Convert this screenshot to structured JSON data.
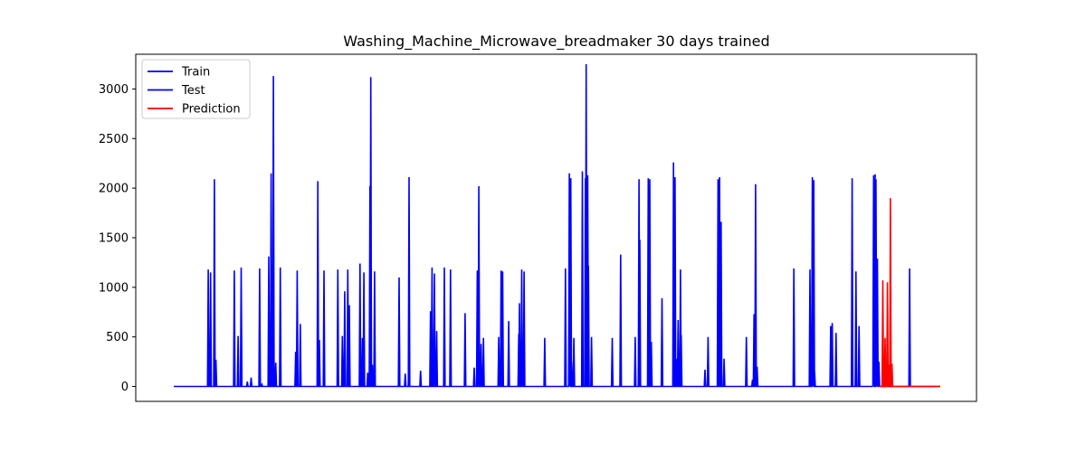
{
  "chart_data": {
    "type": "line",
    "title": "Washing_Machine_Microwave_breadmaker 30 days trained",
    "xlabel": "",
    "ylabel": "",
    "x_range": [
      0,
      1000
    ],
    "ylim": [
      -150,
      3350
    ],
    "yticks": [
      0,
      500,
      1000,
      1500,
      2000,
      2500,
      3000
    ],
    "xticks": [],
    "grid": false,
    "legend_position": "top-left",
    "legend": [
      {
        "label": "Train",
        "color": "#0000ff"
      },
      {
        "label": "Test",
        "color": "#0000ff"
      },
      {
        "label": "Prediction",
        "color": "#ff0000"
      }
    ],
    "series": [
      {
        "name": "Train",
        "color": "#0000ff",
        "spikes": [
          [
            45,
            1180
          ],
          [
            48,
            1150
          ],
          [
            53,
            2090
          ],
          [
            55,
            270
          ],
          [
            79,
            1170
          ],
          [
            84,
            510
          ],
          [
            88,
            1200
          ],
          [
            96,
            50
          ],
          [
            101,
            90
          ],
          [
            112,
            1190
          ],
          [
            115,
            20
          ],
          [
            124,
            1310
          ],
          [
            127,
            2150
          ],
          [
            130,
            3130
          ],
          [
            133,
            240
          ],
          [
            139,
            1200
          ],
          [
            159,
            350
          ],
          [
            161,
            1170
          ],
          [
            165,
            630
          ],
          [
            188,
            2070
          ],
          [
            190,
            470
          ],
          [
            196,
            1170
          ],
          [
            214,
            1180
          ],
          [
            220,
            510
          ],
          [
            223,
            960
          ],
          [
            227,
            1180
          ],
          [
            229,
            820
          ],
          [
            243,
            1240
          ],
          [
            246,
            490
          ],
          [
            248,
            1150
          ],
          [
            253,
            140
          ],
          [
            256,
            2020
          ],
          [
            257,
            3120
          ],
          [
            259,
            220
          ],
          [
            262,
            1160
          ],
          [
            294,
            1100
          ],
          [
            302,
            130
          ],
          [
            307,
            2110
          ],
          [
            322,
            160
          ],
          [
            335,
            760
          ],
          [
            337,
            1200
          ],
          [
            340,
            1140
          ],
          [
            343,
            560
          ],
          [
            353,
            1200
          ],
          [
            361,
            1180
          ],
          [
            380,
            740
          ],
          [
            392,
            190
          ],
          [
            396,
            1170
          ],
          [
            398,
            2020
          ],
          [
            401,
            430
          ],
          [
            404,
            490
          ],
          [
            424,
            500
          ],
          [
            427,
            1170
          ],
          [
            429,
            1160
          ],
          [
            437,
            660
          ],
          [
            450,
            530
          ],
          [
            451,
            840
          ],
          [
            454,
            1180
          ],
          [
            457,
            1160
          ],
          [
            484,
            490
          ],
          [
            511,
            1190
          ],
          [
            516,
            2150
          ],
          [
            518,
            2100
          ],
          [
            519,
            250
          ],
          [
            522,
            490
          ],
          [
            533,
            2170
          ],
          [
            537,
            2100
          ],
          [
            538,
            3250
          ],
          [
            540,
            2130
          ],
          [
            541,
            1220
          ],
          [
            545,
            500
          ],
          [
            572,
            490
          ],
          [
            583,
            1330
          ],
          [
            602,
            500
          ],
          [
            607,
            2090
          ],
          [
            608,
            1480
          ],
          [
            619,
            2100
          ],
          [
            621,
            2090
          ],
          [
            623,
            450
          ],
          [
            637,
            890
          ],
          [
            652,
            2260
          ],
          [
            654,
            2110
          ],
          [
            656,
            280
          ],
          [
            658,
            670
          ],
          [
            661,
            1180
          ],
          [
            662,
            520
          ],
          [
            693,
            170
          ],
          [
            697,
            500
          ],
          [
            710,
            2090
          ],
          [
            712,
            2110
          ],
          [
            714,
            1660
          ],
          [
            718,
            280
          ],
          [
            747,
            500
          ],
          [
            755,
            70
          ],
          [
            757,
            730
          ],
          [
            759,
            2040
          ],
          [
            761,
            200
          ],
          [
            809,
            1190
          ],
          [
            830,
            1180
          ],
          [
            833,
            2110
          ],
          [
            835,
            2080
          ],
          [
            836,
            150
          ],
          [
            857,
            610
          ],
          [
            859,
            640
          ],
          [
            864,
            540
          ],
          [
            885,
            2100
          ],
          [
            890,
            1160
          ],
          [
            894,
            610
          ]
        ]
      },
      {
        "name": "Test",
        "color": "#0000ff",
        "spikes": [
          [
            913,
            2130
          ],
          [
            915,
            2140
          ],
          [
            916,
            2090
          ],
          [
            918,
            1290
          ],
          [
            920,
            250
          ],
          [
            960,
            1190
          ]
        ]
      },
      {
        "name": "Prediction",
        "color": "#ff0000",
        "spikes": [
          [
            925,
            1070
          ],
          [
            928,
            490
          ],
          [
            931,
            1050
          ],
          [
            933,
            220
          ],
          [
            935,
            1900
          ],
          [
            937,
            230
          ]
        ]
      }
    ]
  }
}
